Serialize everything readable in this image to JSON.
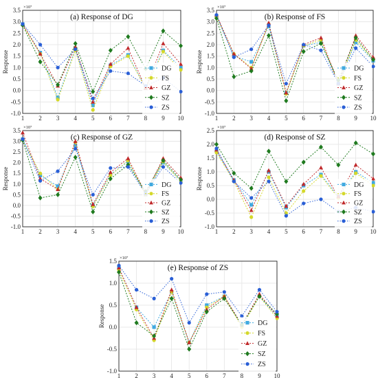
{
  "colors": {
    "DG": "#3fa9e0",
    "FS": "#d4d82a",
    "GZ": "#c0282a",
    "SZ": "#1f7a1f",
    "ZS": "#2a5fd6"
  },
  "chart_data": [
    {
      "type": "line",
      "title": "(a) Response of DG",
      "ylabel": "Response",
      "multiplier": "×10⁷",
      "x": [
        1,
        2,
        3,
        4,
        5,
        6,
        7,
        8,
        9,
        10
      ],
      "ylim": [
        -1.0,
        3.5
      ],
      "yticks": [
        "3.5",
        "3.0",
        "2.5",
        "2.0",
        "1.5",
        "1.0",
        "0.5",
        "0.0",
        "-0.5",
        "-1.0"
      ],
      "legend": "right",
      "series": [
        {
          "name": "DG",
          "values": [
            2.9,
            1.65,
            -0.3,
            1.8,
            -0.65,
            1.1,
            1.55,
            0.1,
            1.75,
            1.0
          ]
        },
        {
          "name": "FS",
          "values": [
            2.85,
            1.6,
            -0.4,
            1.75,
            -0.85,
            1.05,
            1.5,
            0.1,
            1.7,
            0.9
          ]
        },
        {
          "name": "GZ",
          "values": [
            2.9,
            1.6,
            0.2,
            1.9,
            -0.5,
            1.15,
            1.85,
            0.1,
            2.05,
            1.15
          ]
        },
        {
          "name": "SZ",
          "values": [
            2.85,
            1.25,
            0.25,
            2.05,
            -0.05,
            1.75,
            2.35,
            0.95,
            2.6,
            1.95
          ]
        },
        {
          "name": "ZS",
          "values": [
            2.9,
            2.0,
            1.0,
            1.8,
            -0.35,
            0.85,
            0.75,
            0.2,
            0.55,
            -0.05
          ]
        }
      ]
    },
    {
      "type": "line",
      "title": "(b) Response of FS",
      "ylabel": "Response",
      "multiplier": "×10⁷",
      "x": [
        1,
        2,
        3,
        4,
        5,
        6,
        7,
        8,
        9,
        10
      ],
      "ylim": [
        -1.0,
        3.5
      ],
      "yticks": [
        "3.5",
        "3.0",
        "2.5",
        "2.0",
        "1.5",
        "1.0",
        "0.5",
        "0.0",
        "-0.5",
        "-1.0"
      ],
      "legend": "right",
      "series": [
        {
          "name": "DG",
          "values": [
            3.25,
            1.5,
            1.25,
            2.8,
            -0.1,
            1.95,
            2.1,
            0.3,
            2.1,
            1.3
          ]
        },
        {
          "name": "FS",
          "values": [
            3.2,
            1.6,
            1.0,
            2.9,
            -0.15,
            1.95,
            2.2,
            0.3,
            2.2,
            1.35
          ]
        },
        {
          "name": "GZ",
          "values": [
            3.3,
            1.6,
            0.95,
            2.95,
            -0.1,
            2.0,
            2.3,
            0.3,
            2.4,
            1.45
          ]
        },
        {
          "name": "SZ",
          "values": [
            3.15,
            0.6,
            0.85,
            2.4,
            -0.45,
            1.7,
            2.05,
            0.45,
            2.3,
            1.35
          ]
        },
        {
          "name": "ZS",
          "values": [
            3.3,
            1.45,
            1.8,
            2.85,
            0.3,
            2.0,
            1.75,
            0.3,
            1.85,
            1.05
          ]
        }
      ]
    },
    {
      "type": "line",
      "title": "(c) Response of GZ",
      "ylabel": "Response",
      "multiplier": "×10⁷",
      "x": [
        1,
        2,
        3,
        4,
        5,
        6,
        7,
        8,
        9,
        10
      ],
      "ylim": [
        -1.0,
        3.5
      ],
      "yticks": [
        "3.5",
        "3.0",
        "2.5",
        "2.0",
        "1.5",
        "1.0",
        "0.5",
        "0.0",
        "-0.5",
        "-1.0"
      ],
      "legend": "right",
      "series": [
        {
          "name": "DG",
          "values": [
            3.1,
            1.4,
            0.9,
            2.8,
            0.0,
            1.45,
            2.05,
            0.5,
            2.0,
            1.15
          ]
        },
        {
          "name": "FS",
          "values": [
            3.05,
            1.5,
            0.75,
            2.95,
            -0.05,
            1.4,
            2.1,
            0.5,
            2.05,
            1.1
          ]
        },
        {
          "name": "GZ",
          "values": [
            3.4,
            1.25,
            0.75,
            3.0,
            0.05,
            1.55,
            2.2,
            0.55,
            2.2,
            1.3
          ]
        },
        {
          "name": "SZ",
          "values": [
            3.05,
            0.35,
            0.5,
            2.25,
            -0.3,
            1.25,
            1.9,
            0.65,
            2.1,
            1.2
          ]
        },
        {
          "name": "ZS",
          "values": [
            3.1,
            1.15,
            1.6,
            2.65,
            0.5,
            1.75,
            1.8,
            0.55,
            1.8,
            1.05
          ]
        }
      ]
    },
    {
      "type": "line",
      "title": "(d) Response of SZ",
      "ylabel": "Response",
      "multiplier": "×10⁷",
      "x": [
        1,
        2,
        3,
        4,
        5,
        6,
        7,
        8,
        9,
        10
      ],
      "ylim": [
        -1.0,
        2.5
      ],
      "yticks": [
        "2.5",
        "2.0",
        "1.5",
        "1.0",
        "0.5",
        "0.0",
        "-0.5",
        "-1.0"
      ],
      "legend": "right",
      "series": [
        {
          "name": "DG",
          "values": [
            1.75,
            0.7,
            -0.2,
            1.0,
            -0.3,
            0.5,
            0.9,
            0.1,
            1.0,
            0.6
          ]
        },
        {
          "name": "FS",
          "values": [
            1.7,
            0.65,
            -0.65,
            0.8,
            -0.5,
            0.3,
            0.85,
            0.05,
            0.95,
            0.5
          ]
        },
        {
          "name": "GZ",
          "values": [
            1.8,
            0.7,
            -0.4,
            1.05,
            -0.25,
            0.55,
            1.15,
            0.1,
            1.25,
            0.75
          ]
        },
        {
          "name": "SZ",
          "values": [
            2.0,
            0.95,
            0.4,
            1.75,
            0.65,
            1.35,
            1.9,
            1.25,
            2.05,
            1.65
          ]
        },
        {
          "name": "ZS",
          "values": [
            1.85,
            0.65,
            0.05,
            0.65,
            -0.6,
            -0.15,
            0.0,
            -0.45,
            -0.3,
            -0.45
          ]
        }
      ]
    },
    {
      "type": "line",
      "title": "(e) Response of ZS",
      "ylabel": "Response",
      "multiplier": "×10⁷",
      "x": [
        1,
        2,
        3,
        4,
        5,
        6,
        7,
        8,
        9,
        10
      ],
      "ylim": [
        -1.0,
        1.5
      ],
      "yticks": [
        "1.5",
        "1.0",
        "0.5",
        "0.0",
        "-0.5",
        "-1.0"
      ],
      "legend": "right",
      "series": [
        {
          "name": "DG",
          "values": [
            1.35,
            0.45,
            0.0,
            0.8,
            -0.35,
            0.5,
            0.7,
            0.05,
            0.7,
            0.25
          ]
        },
        {
          "name": "FS",
          "values": [
            1.3,
            0.4,
            -0.3,
            0.8,
            -0.35,
            0.45,
            0.7,
            0.0,
            0.7,
            0.2
          ]
        },
        {
          "name": "GZ",
          "values": [
            1.35,
            0.45,
            -0.25,
            0.85,
            -0.35,
            0.4,
            0.7,
            0.05,
            0.75,
            0.25
          ]
        },
        {
          "name": "SZ",
          "values": [
            1.25,
            0.1,
            -0.2,
            0.65,
            -0.5,
            0.35,
            0.65,
            0.05,
            0.7,
            0.3
          ]
        },
        {
          "name": "ZS",
          "values": [
            1.4,
            0.85,
            0.65,
            1.1,
            0.1,
            0.75,
            0.8,
            0.25,
            0.85,
            0.35
          ]
        }
      ]
    }
  ]
}
